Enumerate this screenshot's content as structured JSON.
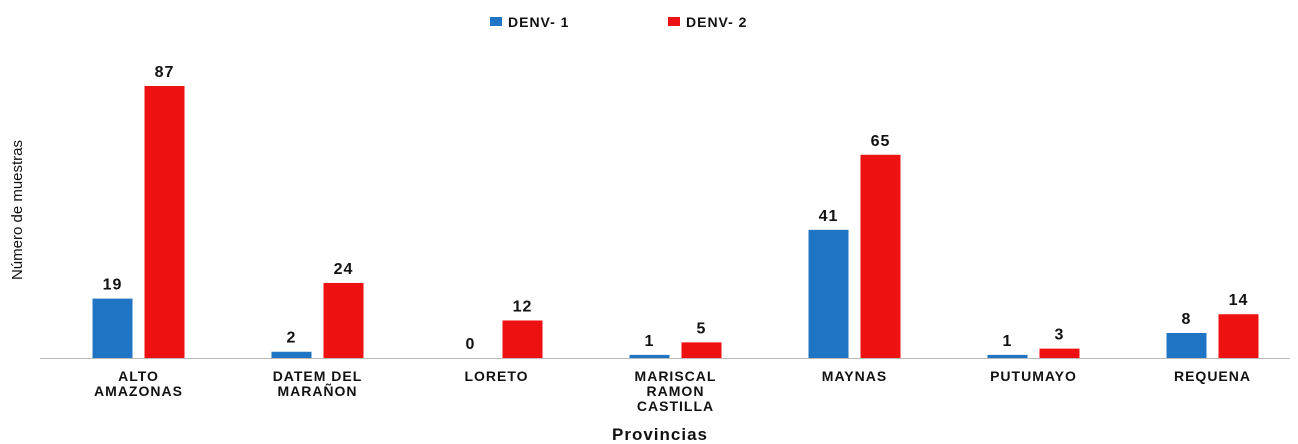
{
  "chart_data": {
    "type": "bar",
    "x_label": "Provincias",
    "y_label": "Número de muestras",
    "categories": [
      "ALTO AMAZONAS",
      "DATEM DEL MARAÑON",
      "LORETO",
      "MARISCAL RAMON CASTILLA",
      "MAYNAS",
      "PUTUMAYO",
      "REQUENA"
    ],
    "series": [
      {
        "name": "DENV- 1",
        "color": "#1f74c4",
        "values": [
          19,
          2,
          0,
          1,
          41,
          1,
          8
        ]
      },
      {
        "name": "DENV- 2",
        "color": "#ee1111",
        "values": [
          87,
          24,
          12,
          5,
          65,
          3,
          14
        ]
      }
    ],
    "legend": "top"
  }
}
